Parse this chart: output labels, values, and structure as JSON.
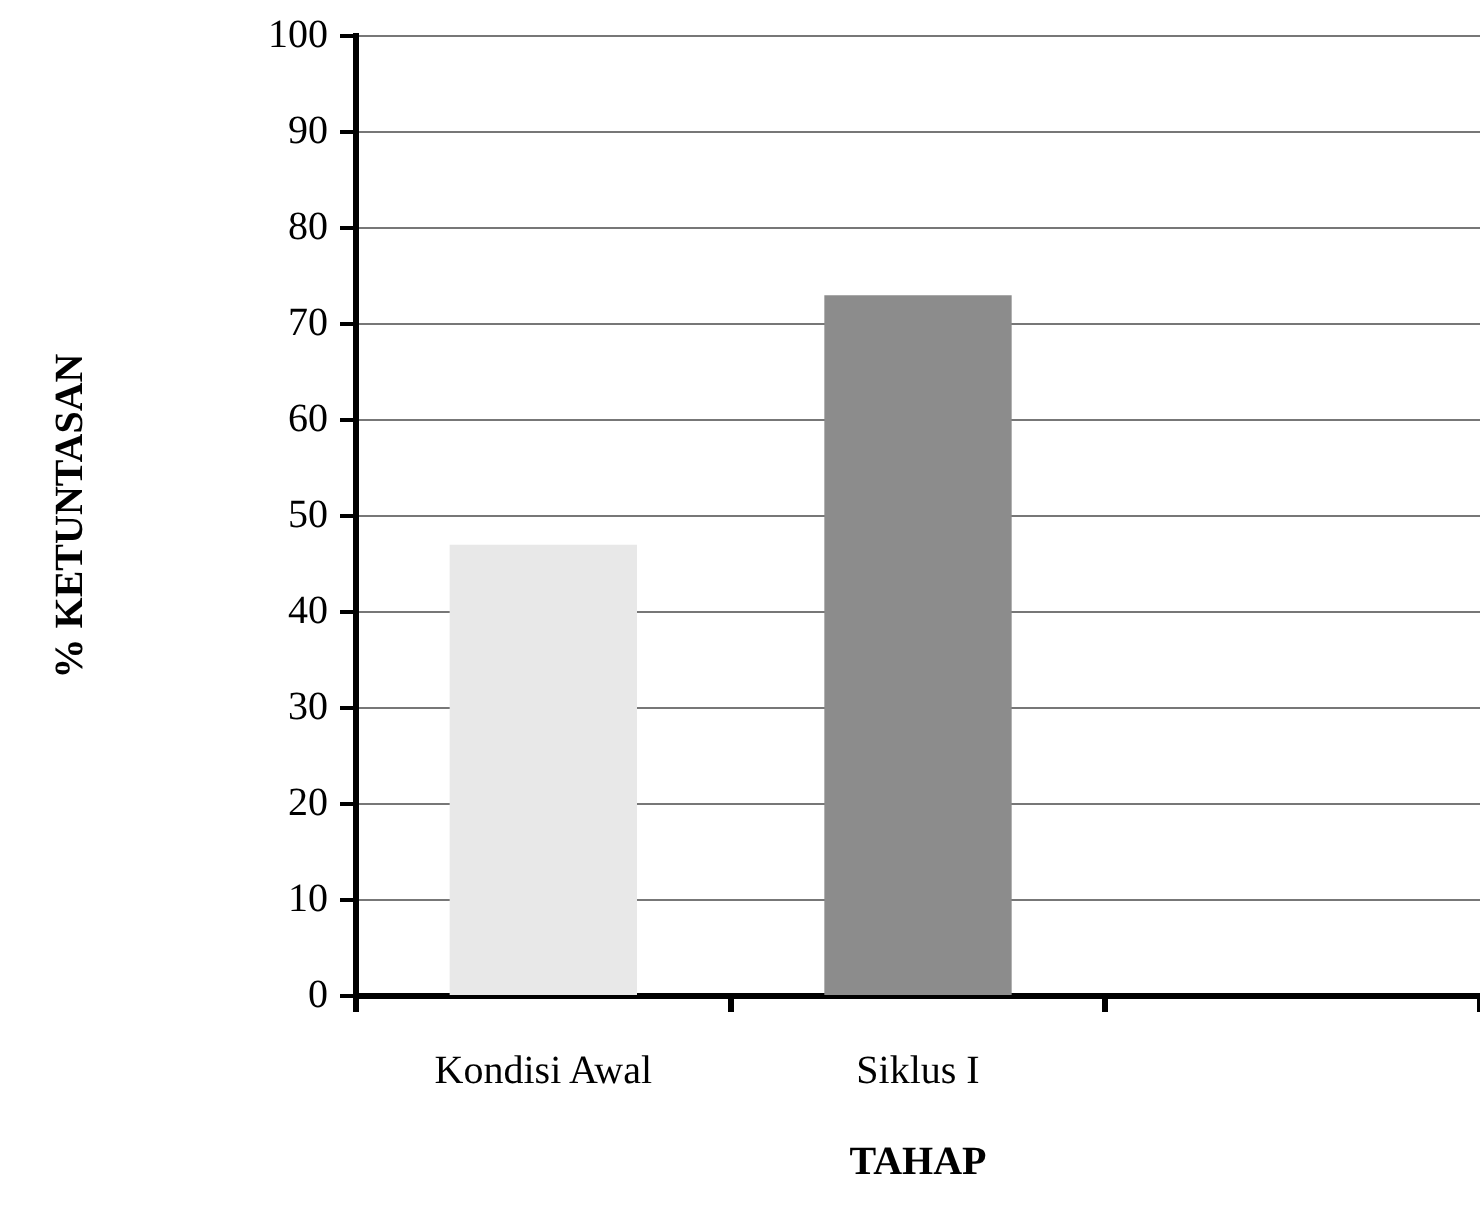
{
  "chart_data": {
    "type": "bar",
    "xlabel": "TAHAP",
    "ylabel": "% KETUNTASAN",
    "categories": [
      "Kondisi Awal",
      "Siklus I",
      null
    ],
    "values": [
      47,
      73,
      null
    ],
    "colors": [
      "#e8e8e8",
      "#8c8c8c",
      "#8c8c8c"
    ],
    "ylim": [
      0,
      100
    ],
    "yticks": [
      0,
      10,
      20,
      30,
      40,
      50,
      60,
      70,
      80,
      90,
      100
    ],
    "grid": "y",
    "legend": false
  }
}
